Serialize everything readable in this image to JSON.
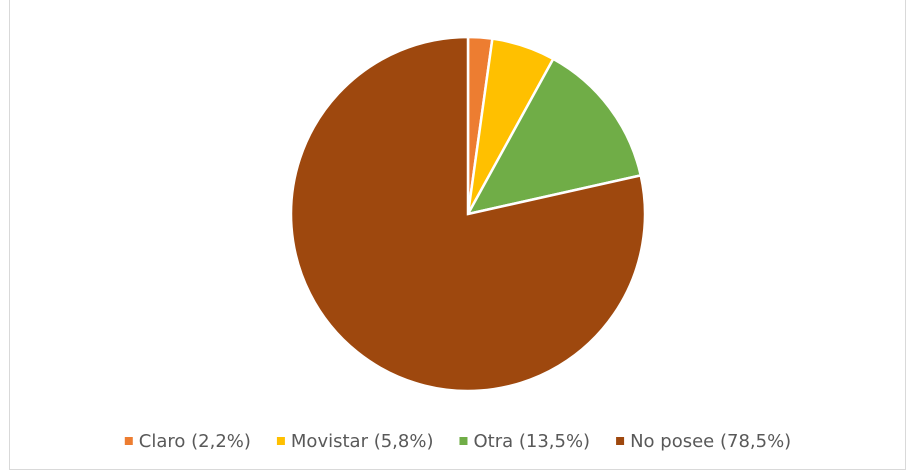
{
  "chart_data": {
    "type": "pie",
    "categories": [
      "Claro (2,2%)",
      "Movistar (5,8%)",
      "Otra (13,5%)",
      "No posee (78,5%)"
    ],
    "values": [
      2.2,
      5.8,
      13.5,
      78.5
    ],
    "colors": [
      "#ED7D31",
      "#FFC000",
      "#70AD47",
      "#9E480E"
    ],
    "legend": "bottom"
  }
}
